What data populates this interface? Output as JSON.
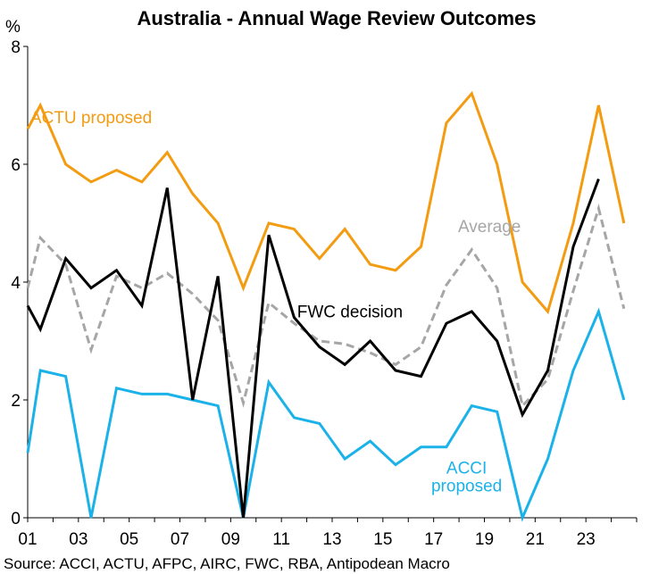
{
  "chart_data": {
    "type": "line",
    "title": "Australia - Annual Wage Review Outcomes",
    "y_unit": "%",
    "ylim": [
      0,
      8
    ],
    "y_ticks": [
      "0",
      "2",
      "4",
      "6",
      "8"
    ],
    "xlim": [
      2001,
      2025
    ],
    "x_tick_labels": [
      "01",
      "03",
      "05",
      "07",
      "09",
      "11",
      "13",
      "15",
      "17",
      "19",
      "21",
      "23"
    ],
    "x_tick_years": [
      2001,
      2003,
      2005,
      2007,
      2009,
      2011,
      2013,
      2015,
      2017,
      2019,
      2021,
      2023
    ],
    "grid": false,
    "legend": "inline labels",
    "source": "Source: ACCI, ACTU, AFPC, AIRC, FWC, RBA, Antipodean Macro",
    "series": [
      {
        "name": "ACTU proposed",
        "color": "#f39c12",
        "style": "solid",
        "x": [
          2001,
          2001.5,
          2002.5,
          2003.5,
          2004.5,
          2005.5,
          2006.5,
          2007.5,
          2008.5,
          2009.5,
          2010.5,
          2011.5,
          2012.5,
          2013.5,
          2014.5,
          2015.5,
          2016.5,
          2017.5,
          2018.5,
          2019.5,
          2020.5,
          2021.5,
          2022.5,
          2023.5,
          2024.5
        ],
        "values": [
          6.6,
          7.0,
          6.0,
          5.7,
          5.9,
          5.7,
          6.2,
          5.5,
          5.0,
          3.9,
          5.0,
          4.9,
          4.4,
          4.9,
          4.3,
          4.2,
          4.6,
          6.7,
          7.2,
          6.0,
          4.0,
          3.5,
          5.0,
          7.0,
          5.0
        ]
      },
      {
        "name": "FWC decision",
        "color": "#000000",
        "style": "solid",
        "x": [
          2001,
          2001.5,
          2002.5,
          2003.5,
          2004.5,
          2005.5,
          2006.5,
          2007.5,
          2008.5,
          2009.5,
          2010.5,
          2011.5,
          2012.5,
          2013.5,
          2014.5,
          2015.5,
          2016.5,
          2017.5,
          2018.5,
          2019.5,
          2020.5,
          2021.5,
          2022.5,
          2023.5
        ],
        "values": [
          3.6,
          3.2,
          4.4,
          3.9,
          4.2,
          3.6,
          5.6,
          2.0,
          4.1,
          0.0,
          4.8,
          3.4,
          2.9,
          2.6,
          3.0,
          2.5,
          2.4,
          3.3,
          3.5,
          3.0,
          1.75,
          2.5,
          4.6,
          5.75
        ]
      },
      {
        "name": "Average",
        "color": "#a6a6a6",
        "style": "dashed",
        "x": [
          2001,
          2001.5,
          2002.5,
          2003.5,
          2004.5,
          2005.5,
          2006.5,
          2007.5,
          2008.5,
          2009.5,
          2010.5,
          2011.5,
          2012.5,
          2013.5,
          2014.5,
          2015.5,
          2016.5,
          2017.5,
          2018.5,
          2019.5,
          2020.5,
          2021.5,
          2022.5,
          2023.5,
          2024.5
        ],
        "values": [
          3.9,
          4.75,
          4.3,
          2.85,
          4.1,
          3.9,
          4.15,
          3.8,
          3.35,
          1.95,
          3.65,
          3.3,
          3.0,
          2.95,
          2.8,
          2.6,
          2.9,
          3.95,
          4.55,
          3.9,
          1.9,
          2.35,
          3.85,
          5.25,
          3.55
        ]
      },
      {
        "name": "ACCI proposed",
        "color": "#1ab2e8",
        "style": "solid",
        "x": [
          2001,
          2001.5,
          2002.5,
          2003.5,
          2004.5,
          2005.5,
          2006.5,
          2007.5,
          2008.5,
          2009.5,
          2010.5,
          2011.5,
          2012.5,
          2013.5,
          2014.5,
          2015.5,
          2016.5,
          2017.5,
          2018.5,
          2019.5,
          2020.5,
          2021.5,
          2022.5,
          2023.5,
          2024.5
        ],
        "values": [
          1.1,
          2.5,
          2.4,
          0.0,
          2.2,
          2.1,
          2.1,
          2.0,
          1.9,
          0.0,
          2.3,
          1.7,
          1.6,
          1.0,
          1.3,
          0.9,
          1.2,
          1.2,
          1.9,
          1.8,
          0.0,
          1.0,
          2.5,
          3.5,
          2.0
        ]
      }
    ],
    "annotations": [
      {
        "text": "ACTU proposed",
        "series": "ACTU proposed",
        "x": 2003.5,
        "y": 6.7
      },
      {
        "text": "Average",
        "series": "Average",
        "x": 2019.2,
        "y": 4.85
      },
      {
        "text": "FWC decision",
        "series": "FWC decision",
        "x": 2013.7,
        "y": 3.4
      },
      {
        "text": "ACCI",
        "series": "ACCI proposed",
        "x": 2018.3,
        "y": 0.75
      },
      {
        "text": "proposed",
        "series": "ACCI proposed",
        "x": 2018.3,
        "y": 0.45
      }
    ]
  }
}
